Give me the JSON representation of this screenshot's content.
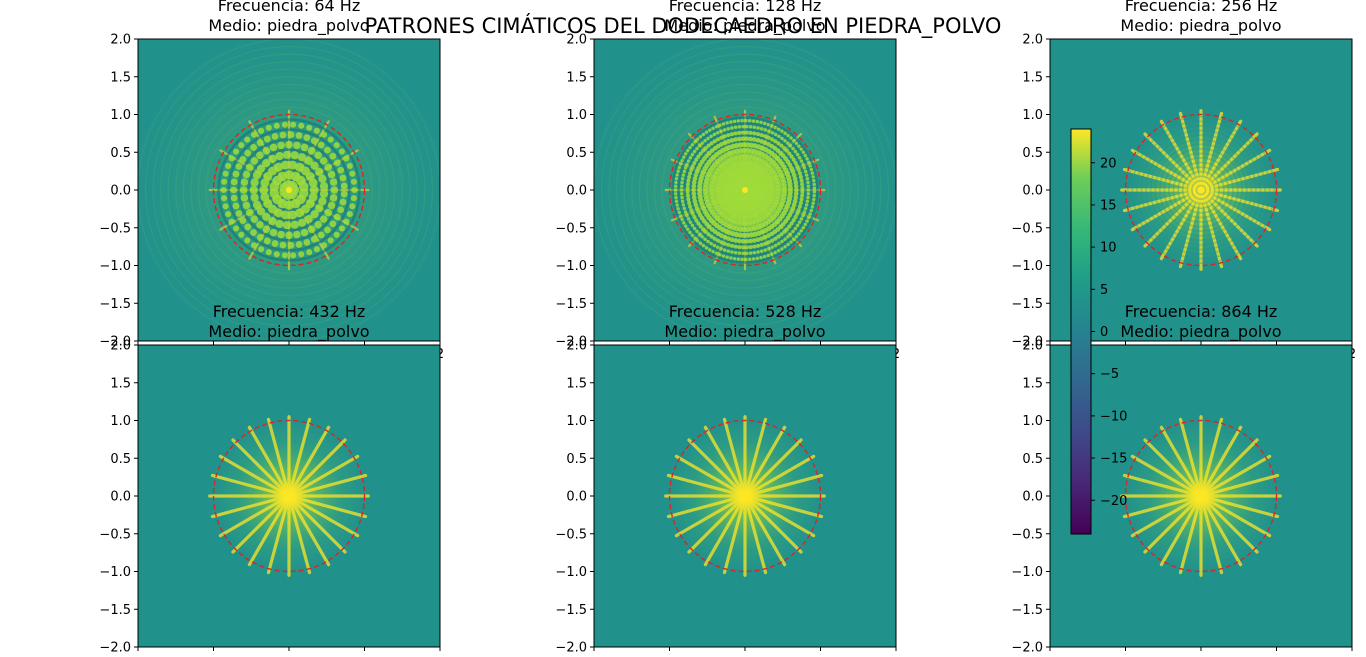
{
  "figure": {
    "suptitle": "PATRONES CIMÁTICOS DEL DODECAEDRO EN PIEDRA_POLVO"
  },
  "chart_data": [
    {
      "type": "heatmap",
      "title_line1": "Frecuencia: 64 Hz",
      "title_line2": "Medio: piedra_polvo",
      "frequency_hz": 64,
      "medium": "piedra_polvo",
      "xlim": [
        -2,
        2
      ],
      "ylim": [
        -2,
        2
      ],
      "yticks": [
        "2.0",
        "1.5",
        "1.0",
        "0.5",
        "0.0",
        "−0.5",
        "−1.0",
        "−1.5",
        "−2.0"
      ],
      "xticks_visible": [
        "2"
      ],
      "boundary_circle": {
        "radius": 1.0,
        "color": "#d62728",
        "style": "dashed"
      },
      "pattern": {
        "style": "interference",
        "rays": 12,
        "rings": 7,
        "outer_glow": true
      }
    },
    {
      "type": "heatmap",
      "title_line1": "Frecuencia: 128 Hz",
      "title_line2": "Medio: piedra_polvo",
      "frequency_hz": 128,
      "medium": "piedra_polvo",
      "xlim": [
        -2,
        2
      ],
      "ylim": [
        -2,
        2
      ],
      "yticks": [
        "2.0",
        "1.5",
        "1.0",
        "0.5",
        "0.0",
        "−0.5",
        "−1.0",
        "−1.5",
        "−2.0"
      ],
      "xticks_visible": [
        "2"
      ],
      "boundary_circle": {
        "radius": 1.0,
        "color": "#d62728",
        "style": "dashed"
      },
      "pattern": {
        "style": "interference",
        "rays": 16,
        "rings": 12,
        "outer_glow": true
      }
    },
    {
      "type": "heatmap",
      "title_line1": "Frecuencia: 256 Hz",
      "title_line2": "Medio: piedra_polvo",
      "frequency_hz": 256,
      "medium": "piedra_polvo",
      "xlim": [
        -2,
        2
      ],
      "ylim": [
        -2,
        2
      ],
      "yticks": [
        "2.0",
        "1.5",
        "1.0",
        "0.5",
        "0.0",
        "−0.5",
        "−1.0",
        "−1.5",
        "−2.0"
      ],
      "xticks_visible": [
        "2"
      ],
      "boundary_circle": {
        "radius": 1.0,
        "color": "#d62728",
        "style": "dashed"
      },
      "pattern": {
        "style": "radial",
        "rays": 24,
        "rings": 16,
        "outer_glow": false
      }
    },
    {
      "type": "heatmap",
      "title_line1": "Frecuencia: 432 Hz",
      "title_line2": "Medio: piedra_polvo",
      "frequency_hz": 432,
      "medium": "piedra_polvo",
      "xlim": [
        -2,
        2
      ],
      "ylim": [
        -2,
        2
      ],
      "yticks": [
        "2.0",
        "1.5",
        "1.0",
        "0.5",
        "0.0",
        "−0.5",
        "−1.0",
        "−1.5",
        "−2.0"
      ],
      "xticks_visible": [],
      "boundary_circle": {
        "radius": 1.0,
        "color": "#d62728",
        "style": "dashed"
      },
      "pattern": {
        "style": "radial",
        "rays": 24,
        "rings": 0,
        "outer_glow": false
      }
    },
    {
      "type": "heatmap",
      "title_line1": "Frecuencia: 528 Hz",
      "title_line2": "Medio: piedra_polvo",
      "frequency_hz": 528,
      "medium": "piedra_polvo",
      "xlim": [
        -2,
        2
      ],
      "ylim": [
        -2,
        2
      ],
      "yticks": [
        "2.0",
        "1.5",
        "1.0",
        "0.5",
        "0.0",
        "−0.5",
        "−1.0",
        "−1.5",
        "−2.0"
      ],
      "xticks_visible": [],
      "boundary_circle": {
        "radius": 1.0,
        "color": "#d62728",
        "style": "dashed"
      },
      "pattern": {
        "style": "radial",
        "rays": 24,
        "rings": 0,
        "outer_glow": false
      }
    },
    {
      "type": "heatmap",
      "title_line1": "Frecuencia: 864 Hz",
      "title_line2": "Medio: piedra_polvo",
      "frequency_hz": 864,
      "medium": "piedra_polvo",
      "xlim": [
        -2,
        2
      ],
      "ylim": [
        -2,
        2
      ],
      "yticks": [
        "2.0",
        "1.5",
        "1.0",
        "0.5",
        "0.0",
        "−0.5",
        "−1.0",
        "−1.5",
        "−2.0"
      ],
      "xticks_visible": [],
      "boundary_circle": {
        "radius": 1.0,
        "color": "#d62728",
        "style": "dashed"
      },
      "pattern": {
        "style": "radial",
        "rays": 24,
        "rings": 0,
        "outer_glow": false
      }
    }
  ],
  "colorbar": {
    "colormap": "viridis",
    "range": [
      -24,
      24
    ],
    "ticks": [
      "20",
      "15",
      "10",
      "5",
      "0",
      "−5",
      "−10",
      "−15",
      "−20"
    ],
    "tick_values": [
      20,
      15,
      10,
      5,
      0,
      -5,
      -10,
      -15,
      -20
    ]
  },
  "colors": {
    "background_value": "#21918c",
    "circle": "#d62728",
    "bright": "#fde725",
    "mid_green": "#5ec962",
    "light_green": "#a0da39"
  }
}
